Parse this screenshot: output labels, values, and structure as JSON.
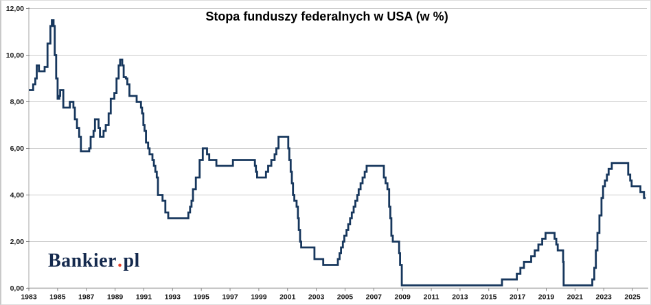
{
  "page": {
    "watermark": {
      "part1": "Bankier",
      "dot": ".",
      "part2": "pl",
      "text_color": "#14294d",
      "dot_color": "#e8402a"
    }
  },
  "chart_data": {
    "type": "line",
    "step": true,
    "title": "Stopa funduszy federalnych w USA (w %)",
    "xlabel": "",
    "ylabel": "",
    "legend": "none",
    "grid": "horizontal",
    "xlim": [
      1983,
      2026
    ],
    "ylim": [
      0,
      12
    ],
    "y_tick_labels": [
      "0,00",
      "2,00",
      "4,00",
      "6,00",
      "8,00",
      "10,00",
      "12,00"
    ],
    "y_tick_values": [
      0,
      2,
      4,
      6,
      8,
      10,
      12
    ],
    "x_tick_labels": [
      "1983",
      "1985",
      "1987",
      "1989",
      "1991",
      "1993",
      "1995",
      "1997",
      "1999",
      "2001",
      "2003",
      "2005",
      "2007",
      "2009",
      "2011",
      "2013",
      "2015",
      "2017",
      "2019",
      "2021",
      "2023",
      "2025"
    ],
    "line_color": "#17375d",
    "grid_color": "#c9c9c9",
    "axis_color": "#b3b3b3",
    "tick_color": "#7f7f7f",
    "label_color": "#1a1a1a",
    "series": [
      {
        "name": "Stopa funduszy federalnych (w %)",
        "points": [
          [
            1983.0,
            8.5
          ],
          [
            1983.3,
            8.75
          ],
          [
            1983.45,
            9.0
          ],
          [
            1983.55,
            9.56
          ],
          [
            1983.7,
            9.31
          ],
          [
            1984.1,
            9.5
          ],
          [
            1984.3,
            10.5
          ],
          [
            1984.5,
            11.25
          ],
          [
            1984.6,
            11.5
          ],
          [
            1984.72,
            11.25
          ],
          [
            1984.8,
            10.0
          ],
          [
            1984.9,
            9.0
          ],
          [
            1985.0,
            8.13
          ],
          [
            1985.12,
            8.25
          ],
          [
            1985.18,
            8.5
          ],
          [
            1985.4,
            7.75
          ],
          [
            1985.85,
            8.0
          ],
          [
            1986.1,
            7.75
          ],
          [
            1986.2,
            7.25
          ],
          [
            1986.35,
            6.88
          ],
          [
            1986.5,
            6.5
          ],
          [
            1986.62,
            5.875
          ],
          [
            1987.2,
            6.0
          ],
          [
            1987.3,
            6.5
          ],
          [
            1987.5,
            6.75
          ],
          [
            1987.6,
            7.25
          ],
          [
            1987.85,
            6.88
          ],
          [
            1987.95,
            6.5
          ],
          [
            1988.2,
            6.75
          ],
          [
            1988.35,
            7.0
          ],
          [
            1988.55,
            7.5
          ],
          [
            1988.7,
            8.13
          ],
          [
            1988.95,
            8.38
          ],
          [
            1989.1,
            9.0
          ],
          [
            1989.25,
            9.56
          ],
          [
            1989.35,
            9.81
          ],
          [
            1989.5,
            9.56
          ],
          [
            1989.6,
            9.06
          ],
          [
            1989.75,
            9.0
          ],
          [
            1989.85,
            8.75
          ],
          [
            1990.0,
            8.25
          ],
          [
            1990.5,
            8.0
          ],
          [
            1990.8,
            7.75
          ],
          [
            1990.88,
            7.5
          ],
          [
            1990.97,
            7.0
          ],
          [
            1991.05,
            6.75
          ],
          [
            1991.15,
            6.25
          ],
          [
            1991.3,
            6.0
          ],
          [
            1991.4,
            5.75
          ],
          [
            1991.6,
            5.5
          ],
          [
            1991.7,
            5.25
          ],
          [
            1991.8,
            5.0
          ],
          [
            1991.9,
            4.75
          ],
          [
            1991.98,
            4.0
          ],
          [
            1992.3,
            3.75
          ],
          [
            1992.5,
            3.25
          ],
          [
            1992.7,
            3.0
          ],
          [
            1994.1,
            3.25
          ],
          [
            1994.22,
            3.5
          ],
          [
            1994.32,
            3.75
          ],
          [
            1994.42,
            4.25
          ],
          [
            1994.62,
            4.75
          ],
          [
            1994.88,
            5.5
          ],
          [
            1995.1,
            6.0
          ],
          [
            1995.4,
            5.75
          ],
          [
            1995.55,
            5.5
          ],
          [
            1996.05,
            5.25
          ],
          [
            1997.2,
            5.5
          ],
          [
            1998.73,
            5.25
          ],
          [
            1998.8,
            5.0
          ],
          [
            1998.88,
            4.75
          ],
          [
            1999.5,
            5.0
          ],
          [
            1999.65,
            5.25
          ],
          [
            1999.87,
            5.5
          ],
          [
            2000.1,
            5.75
          ],
          [
            2000.22,
            6.0
          ],
          [
            2000.37,
            6.5
          ],
          [
            2001.05,
            6.0
          ],
          [
            2001.12,
            5.5
          ],
          [
            2001.22,
            5.0
          ],
          [
            2001.3,
            4.5
          ],
          [
            2001.38,
            4.0
          ],
          [
            2001.47,
            3.75
          ],
          [
            2001.63,
            3.5
          ],
          [
            2001.72,
            3.0
          ],
          [
            2001.78,
            2.5
          ],
          [
            2001.87,
            2.0
          ],
          [
            2001.95,
            1.75
          ],
          [
            2002.87,
            1.25
          ],
          [
            2003.48,
            1.0
          ],
          [
            2004.5,
            1.25
          ],
          [
            2004.62,
            1.5
          ],
          [
            2004.72,
            1.75
          ],
          [
            2004.85,
            2.0
          ],
          [
            2004.95,
            2.25
          ],
          [
            2005.1,
            2.5
          ],
          [
            2005.22,
            2.75
          ],
          [
            2005.35,
            3.0
          ],
          [
            2005.47,
            3.25
          ],
          [
            2005.6,
            3.5
          ],
          [
            2005.72,
            3.75
          ],
          [
            2005.85,
            4.0
          ],
          [
            2005.95,
            4.25
          ],
          [
            2006.08,
            4.5
          ],
          [
            2006.22,
            4.75
          ],
          [
            2006.37,
            5.0
          ],
          [
            2006.5,
            5.25
          ],
          [
            2007.7,
            4.75
          ],
          [
            2007.82,
            4.5
          ],
          [
            2007.95,
            4.25
          ],
          [
            2008.07,
            3.5
          ],
          [
            2008.15,
            3.0
          ],
          [
            2008.22,
            2.25
          ],
          [
            2008.32,
            2.0
          ],
          [
            2008.76,
            1.5
          ],
          [
            2008.83,
            1.0
          ],
          [
            2008.95,
            0.125
          ],
          [
            2015.92,
            0.375
          ],
          [
            2016.95,
            0.625
          ],
          [
            2017.2,
            0.875
          ],
          [
            2017.45,
            1.125
          ],
          [
            2017.95,
            1.375
          ],
          [
            2018.2,
            1.625
          ],
          [
            2018.45,
            1.875
          ],
          [
            2018.72,
            2.125
          ],
          [
            2018.95,
            2.375
          ],
          [
            2019.58,
            2.125
          ],
          [
            2019.7,
            1.875
          ],
          [
            2019.8,
            1.625
          ],
          [
            2020.17,
            1.125
          ],
          [
            2020.21,
            0.125
          ],
          [
            2022.2,
            0.375
          ],
          [
            2022.34,
            0.875
          ],
          [
            2022.45,
            1.625
          ],
          [
            2022.56,
            2.375
          ],
          [
            2022.7,
            3.125
          ],
          [
            2022.84,
            3.875
          ],
          [
            2022.95,
            4.375
          ],
          [
            2023.08,
            4.625
          ],
          [
            2023.22,
            4.875
          ],
          [
            2023.34,
            5.125
          ],
          [
            2023.56,
            5.375
          ],
          [
            2024.7,
            4.875
          ],
          [
            2024.84,
            4.625
          ],
          [
            2024.94,
            4.375
          ],
          [
            2025.55,
            4.125
          ],
          [
            2025.8,
            3.875
          ],
          [
            2025.92,
            3.875
          ]
        ]
      }
    ]
  }
}
